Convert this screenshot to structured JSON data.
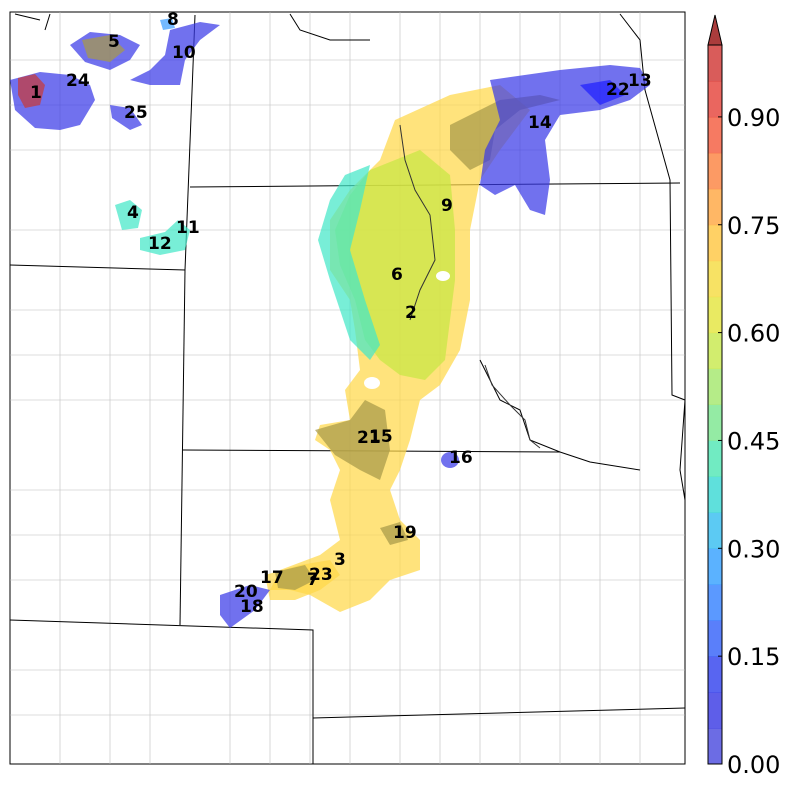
{
  "map": {
    "regions": [
      {
        "label": "1"
      },
      {
        "label": "2"
      },
      {
        "label": "3"
      },
      {
        "label": "4"
      },
      {
        "label": "5"
      },
      {
        "label": "6"
      },
      {
        "label": "7"
      },
      {
        "label": "8"
      },
      {
        "label": "9"
      },
      {
        "label": "10"
      },
      {
        "label": "11"
      },
      {
        "label": "12"
      },
      {
        "label": "13"
      },
      {
        "label": "14"
      },
      {
        "label": "15"
      },
      {
        "label": "16"
      },
      {
        "label": "17"
      },
      {
        "label": "18"
      },
      {
        "label": "19"
      },
      {
        "label": "20"
      },
      {
        "label": "21"
      },
      {
        "label": "22"
      },
      {
        "label": "23"
      },
      {
        "label": "24"
      },
      {
        "label": "25"
      }
    ]
  },
  "colorbar": {
    "min": 0.0,
    "max": 1.0,
    "extend": "max",
    "ticks": [
      "0.00",
      "0.15",
      "0.30",
      "0.45",
      "0.60",
      "0.75",
      "0.90"
    ],
    "colors": {
      "low": "#3a3ae8",
      "mid_low": "#3ea0ff",
      "mid": "#44e8c8",
      "mid_high": "#c8e844",
      "high": "#ffd84a",
      "higher": "#ff9a4a",
      "top": "#c83a3a"
    }
  }
}
